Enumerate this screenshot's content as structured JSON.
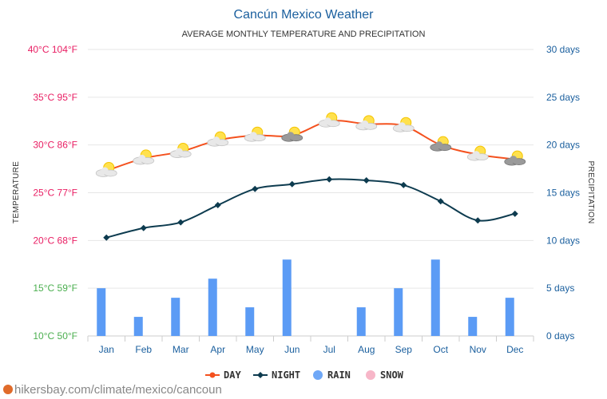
{
  "header": {
    "title": "Cancún Mexico Weather",
    "subtitle": "AVERAGE MONTHLY TEMPERATURE AND PRECIPITATION"
  },
  "axes": {
    "left_title": "TEMPERATURE",
    "right_title": "PRECIPITATION",
    "left_ticks": [
      {
        "label": "10°C 50°F",
        "value": 10,
        "color": "#4caf50"
      },
      {
        "label": "15°C 59°F",
        "value": 15,
        "color": "#4caf50"
      },
      {
        "label": "20°C 68°F",
        "value": 20,
        "color": "#e91e63"
      },
      {
        "label": "25°C 77°F",
        "value": 25,
        "color": "#e91e63"
      },
      {
        "label": "30°C 86°F",
        "value": 30,
        "color": "#e91e63"
      },
      {
        "label": "35°C 95°F",
        "value": 35,
        "color": "#e91e63"
      },
      {
        "label": "40°C 104°F",
        "value": 40,
        "color": "#e91e63"
      }
    ],
    "right_ticks": [
      {
        "label": "0 days",
        "value": 0
      },
      {
        "label": "5 days",
        "value": 5
      },
      {
        "label": "10 days",
        "value": 10
      },
      {
        "label": "15 days",
        "value": 15
      },
      {
        "label": "20 days",
        "value": 20
      },
      {
        "label": "25 days",
        "value": 25
      },
      {
        "label": "30 days",
        "value": 30
      }
    ]
  },
  "legend": {
    "day": "DAY",
    "night": "NIGHT",
    "rain": "RAIN",
    "snow": "SNOW"
  },
  "footer": {
    "source": "hikersbay.com/climate/mexico/cancoun"
  },
  "chart_data": {
    "type": "line",
    "categories": [
      "Jan",
      "Feb",
      "Mar",
      "Apr",
      "May",
      "Jun",
      "Jul",
      "Aug",
      "Sep",
      "Oct",
      "Nov",
      "Dec"
    ],
    "series": [
      {
        "name": "DAY",
        "axis": "temperature",
        "unit": "°C",
        "color": "#f4511e",
        "values": [
          27.3,
          28.6,
          29.3,
          30.5,
          31.0,
          31.0,
          32.5,
          32.2,
          32.0,
          30.0,
          29.0,
          28.5
        ]
      },
      {
        "name": "NIGHT",
        "axis": "temperature",
        "unit": "°C",
        "color": "#0d3b4f",
        "values": [
          20.3,
          21.3,
          21.9,
          23.7,
          25.4,
          25.9,
          26.4,
          26.3,
          25.8,
          24.1,
          22.1,
          22.8
        ]
      },
      {
        "name": "RAIN",
        "type": "bar",
        "axis": "precipitation",
        "unit": "days",
        "color": "#5b9bf5",
        "values": [
          5,
          2,
          4,
          6,
          3,
          8,
          0,
          3,
          5,
          8,
          2,
          4
        ]
      },
      {
        "name": "SNOW",
        "type": "bar",
        "axis": "precipitation",
        "unit": "days",
        "color": "#f7b6c8",
        "values": [
          0,
          0,
          0,
          0,
          0,
          0,
          0,
          0,
          0,
          0,
          0,
          0
        ]
      }
    ],
    "weather_icons": [
      "partly-sunny",
      "partly-sunny",
      "partly-sunny",
      "partly-sunny",
      "partly-sunny",
      "sun-with-dark-cloud",
      "partly-sunny",
      "partly-sunny",
      "partly-sunny",
      "sun-with-dark-cloud",
      "partly-sunny",
      "sun-with-dark-cloud"
    ],
    "ylim_left": [
      10,
      40
    ],
    "ylim_right": [
      0,
      30
    ],
    "grid": true,
    "legend_position": "bottom"
  }
}
